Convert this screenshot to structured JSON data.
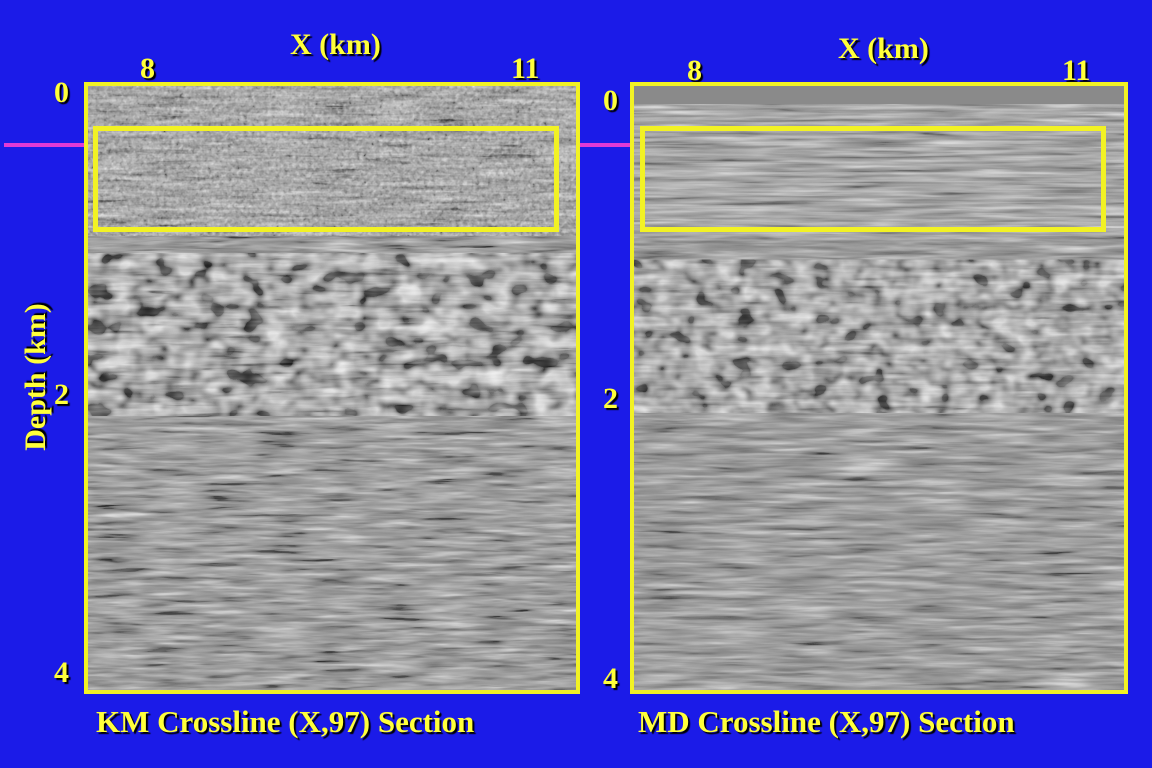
{
  "colors": {
    "background": "#1b1be8",
    "label_yellow": "#ffff3a",
    "frame_yellow": "#f2f224",
    "marker_magenta": "#e23ad6",
    "seismic_gray": "#8a8a8a"
  },
  "y_axis_title": "Depth (km)",
  "panels": [
    {
      "x_axis_title": "X (km)",
      "x_ticks": [
        "8",
        "11"
      ],
      "y_ticks": [
        "0",
        "2",
        "4"
      ],
      "caption": "KM Crossline (X,97) Section",
      "style": "noisy"
    },
    {
      "x_axis_title": "X (km)",
      "x_ticks": [
        "8",
        "11"
      ],
      "y_ticks": [
        "0",
        "2",
        "4"
      ],
      "caption": "MD Crossline (X,97) Section",
      "style": "clean"
    }
  ]
}
